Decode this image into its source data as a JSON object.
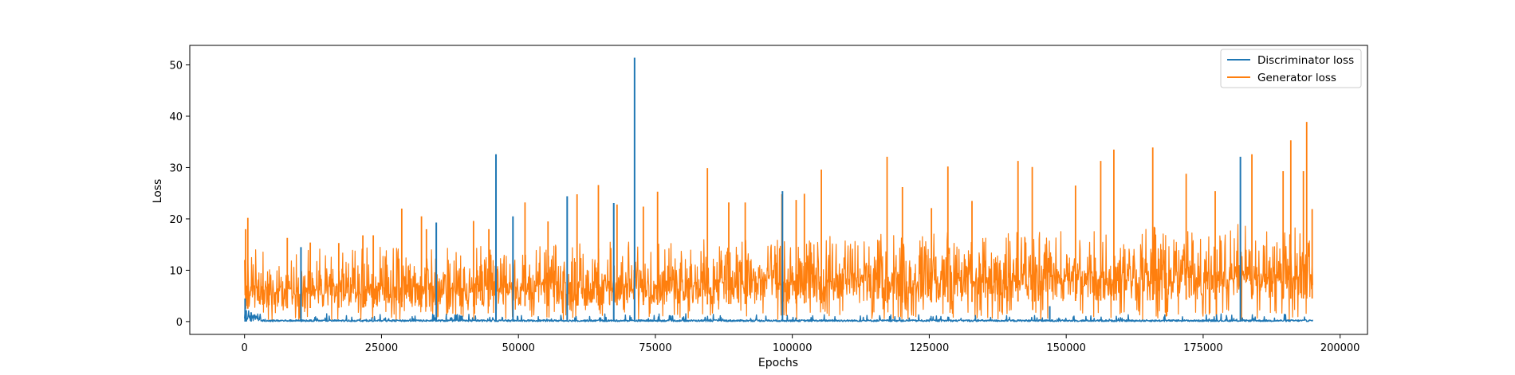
{
  "chart_data": {
    "type": "line",
    "title": "",
    "xlabel": "Epochs",
    "ylabel": "Loss",
    "xlim": [
      -10000,
      205000
    ],
    "ylim": [
      -2.5,
      53.8
    ],
    "xticks": [
      0,
      25000,
      50000,
      75000,
      100000,
      125000,
      150000,
      175000,
      200000
    ],
    "yticks": [
      0,
      10,
      20,
      30,
      40,
      50
    ],
    "grid": false,
    "legend_position": "top-right",
    "series": [
      {
        "name": "Discriminator loss",
        "color": "#1f77b4",
        "baseline_range": [
          0.0,
          1.5
        ],
        "spikes": [
          [
            100,
            4.5
          ],
          [
            300,
            2.2
          ],
          [
            1200,
            1.8
          ],
          [
            10300,
            14.5
          ],
          [
            35000,
            19.3
          ],
          [
            45900,
            32.6
          ],
          [
            49000,
            20.5
          ],
          [
            58900,
            24.4
          ],
          [
            67400,
            23.1
          ],
          [
            71200,
            51.4
          ],
          [
            98200,
            25.4
          ],
          [
            147000,
            3.0
          ],
          [
            181800,
            32.1
          ]
        ]
      },
      {
        "name": "Generator loss",
        "color": "#ff7f0e",
        "band_low": [
          [
            0,
            2.5
          ],
          [
            50000,
            3.0
          ],
          [
            100000,
            3.5
          ],
          [
            150000,
            4.0
          ],
          [
            195000,
            4.5
          ]
        ],
        "band_high": [
          [
            0,
            10.0
          ],
          [
            50000,
            11.0
          ],
          [
            100000,
            12.5
          ],
          [
            150000,
            14.0
          ],
          [
            195000,
            15.5
          ]
        ],
        "peaks": [
          [
            200,
            18.0
          ],
          [
            600,
            20.2
          ],
          [
            7800,
            16.3
          ],
          [
            12000,
            15.4
          ],
          [
            17200,
            15.3
          ],
          [
            21600,
            16.8
          ],
          [
            23500,
            16.8
          ],
          [
            28700,
            22.0
          ],
          [
            32300,
            20.5
          ],
          [
            33200,
            18.0
          ],
          [
            41800,
            19.6
          ],
          [
            44600,
            18.0
          ],
          [
            51200,
            23.2
          ],
          [
            55400,
            19.5
          ],
          [
            60700,
            24.8
          ],
          [
            64600,
            26.6
          ],
          [
            68000,
            22.8
          ],
          [
            72800,
            22.4
          ],
          [
            75400,
            25.3
          ],
          [
            84500,
            29.9
          ],
          [
            88400,
            23.2
          ],
          [
            91400,
            23.2
          ],
          [
            98100,
            24.8
          ],
          [
            100700,
            23.7
          ],
          [
            102200,
            24.9
          ],
          [
            105300,
            29.6
          ],
          [
            117300,
            32.1
          ],
          [
            120100,
            26.2
          ],
          [
            125400,
            22.1
          ],
          [
            128400,
            30.2
          ],
          [
            132800,
            23.5
          ],
          [
            141200,
            31.3
          ],
          [
            143800,
            30.1
          ],
          [
            151700,
            26.5
          ],
          [
            156300,
            31.3
          ],
          [
            158700,
            33.5
          ],
          [
            165800,
            33.9
          ],
          [
            171900,
            28.8
          ],
          [
            177200,
            25.4
          ],
          [
            183900,
            32.6
          ],
          [
            189600,
            29.3
          ],
          [
            191000,
            35.3
          ],
          [
            193300,
            29.3
          ],
          [
            193900,
            38.9
          ],
          [
            194900,
            21.9
          ]
        ]
      }
    ]
  }
}
